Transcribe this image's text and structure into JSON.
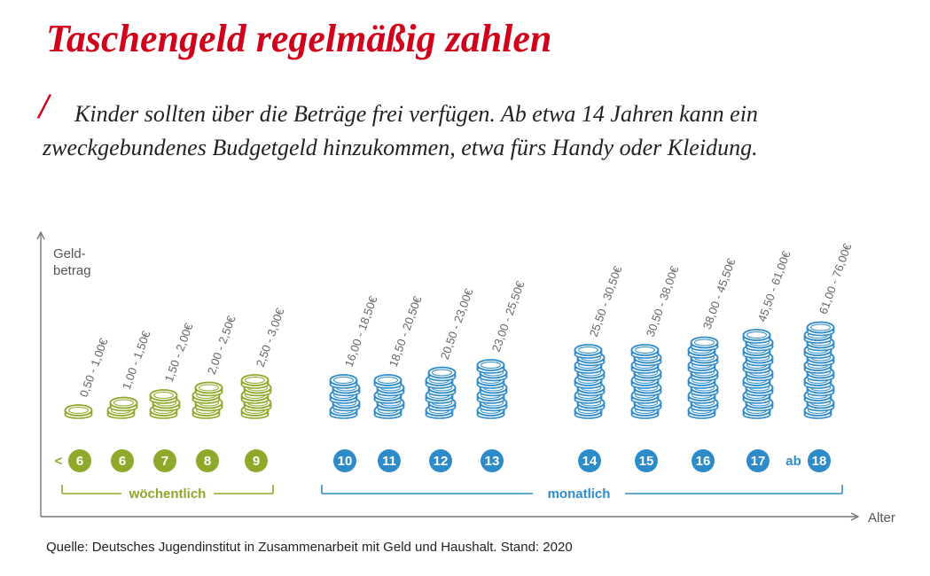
{
  "header": {
    "title": "Taschengeld regelmäßig zahlen",
    "slash": "/",
    "subtitle": "Kinder sollten über die Beträge frei verfügen. Ab etwa 14 Jahren kann ein zweckgebundenes Budgetgeld hinzukommen, etwa fürs Handy oder Kleidung."
  },
  "source": "Quelle: Deutsches Jugendinstitut in Zusammenarbeit mit Geld und Haushalt. Stand: 2020",
  "colors": {
    "title": "#d0021b",
    "weekly": "#8ea829",
    "monthly": "#2e8bc9",
    "axis": "#777777"
  },
  "chart_data": {
    "type": "bar",
    "ylabel_line1": "Geld-",
    "ylabel_line2": "betrag",
    "xlabel": "Alter",
    "groups": [
      {
        "label": "wöchentlich",
        "color": "#8ea829"
      },
      {
        "label": "monatlich",
        "color": "#2e8bc9"
      }
    ],
    "categories": [
      {
        "age": "6",
        "prefix": "<",
        "range": "0,50 - 1,00€",
        "min": 0.5,
        "max": 1.0,
        "coins": 1,
        "group": 0
      },
      {
        "age": "6",
        "prefix": "",
        "range": "1,00 - 1,50€",
        "min": 1.0,
        "max": 1.5,
        "coins": 2,
        "group": 0
      },
      {
        "age": "7",
        "prefix": "",
        "range": "1,50 - 2,00€",
        "min": 1.5,
        "max": 2.0,
        "coins": 3,
        "group": 0
      },
      {
        "age": "8",
        "prefix": "",
        "range": "2,00 - 2,50€",
        "min": 2.0,
        "max": 2.5,
        "coins": 4,
        "group": 0
      },
      {
        "age": "9",
        "prefix": "",
        "range": "2,50 - 3,00€",
        "min": 2.5,
        "max": 3.0,
        "coins": 5,
        "group": 0
      },
      {
        "age": "10",
        "prefix": "",
        "range": "16,00 - 18,50€",
        "min": 16.0,
        "max": 18.5,
        "coins": 5,
        "group": 1
      },
      {
        "age": "11",
        "prefix": "",
        "range": "18,50 - 20,50€",
        "min": 18.5,
        "max": 20.5,
        "coins": 5,
        "group": 1
      },
      {
        "age": "12",
        "prefix": "",
        "range": "20,50 - 23,00€",
        "min": 20.5,
        "max": 23.0,
        "coins": 6,
        "group": 1
      },
      {
        "age": "13",
        "prefix": "",
        "range": "23,00 - 25,50€",
        "min": 23.0,
        "max": 25.5,
        "coins": 7,
        "group": 1
      },
      {
        "age": "14",
        "prefix": "",
        "range": "25,50 - 30,50€",
        "min": 25.5,
        "max": 30.5,
        "coins": 9,
        "group": 1
      },
      {
        "age": "15",
        "prefix": "",
        "range": "30,50 - 38,00€",
        "min": 30.5,
        "max": 38.0,
        "coins": 9,
        "group": 1
      },
      {
        "age": "16",
        "prefix": "",
        "range": "38,00 - 45,50€",
        "min": 38.0,
        "max": 45.5,
        "coins": 10,
        "group": 1
      },
      {
        "age": "17",
        "prefix": "",
        "range": "45,50 - 61,00€",
        "min": 45.5,
        "max": 61.0,
        "coins": 11,
        "group": 1
      },
      {
        "age": "18",
        "prefix": "ab",
        "range": "61,00 - 76,00€",
        "min": 61.0,
        "max": 76.0,
        "coins": 12,
        "group": 1
      }
    ]
  }
}
